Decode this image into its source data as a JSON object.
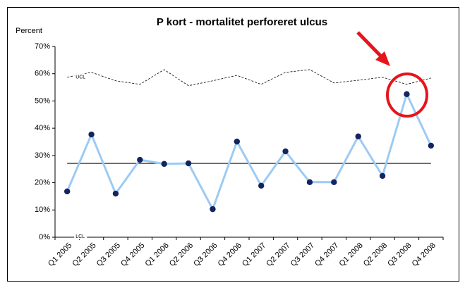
{
  "chart_data": {
    "type": "line",
    "title": "P kort - mortalitet perforeret ulcus",
    "y_label": "Percent",
    "categories": [
      "Q1 2005",
      "Q2 2005",
      "Q3 2005",
      "Q4 2005",
      "Q1 2006",
      "Q2 2006",
      "Q3 2006",
      "Q4 2006",
      "Q1 2007",
      "Q2 2007",
      "Q3 2007",
      "Q4 2007",
      "Q1 2008",
      "Q2 2008",
      "Q3 2008",
      "Q4 2008"
    ],
    "series": [
      {
        "name": "P",
        "color": "#9ccbf3",
        "marker_color": "#14245e",
        "values": [
          16.8,
          37.7,
          16.0,
          28.4,
          26.9,
          27.1,
          10.3,
          35.1,
          18.9,
          31.5,
          20.2,
          20.2,
          37.0,
          22.5,
          52.5,
          33.6
        ]
      }
    ],
    "ucl": {
      "name": "UCL",
      "values": [
        58.7,
        60.5,
        57.4,
        56.1,
        61.5,
        55.6,
        57.4,
        59.4,
        56.1,
        60.5,
        61.5,
        56.6,
        57.6,
        58.7,
        56.1,
        58.4
      ]
    },
    "lcl": {
      "name": "LCL",
      "value": 0
    },
    "center_line": 27.1,
    "ylim": [
      0,
      70
    ],
    "yticks": [
      {
        "value": 0,
        "label": "0%"
      },
      {
        "value": 10,
        "label": "10%"
      },
      {
        "value": 20,
        "label": "20%"
      },
      {
        "value": 30,
        "label": "30%"
      },
      {
        "value": 40,
        "label": "40%"
      },
      {
        "value": 50,
        "label": "50%"
      },
      {
        "value": 60,
        "label": "60%"
      },
      {
        "value": 70,
        "label": "70%"
      }
    ],
    "grid": false
  }
}
